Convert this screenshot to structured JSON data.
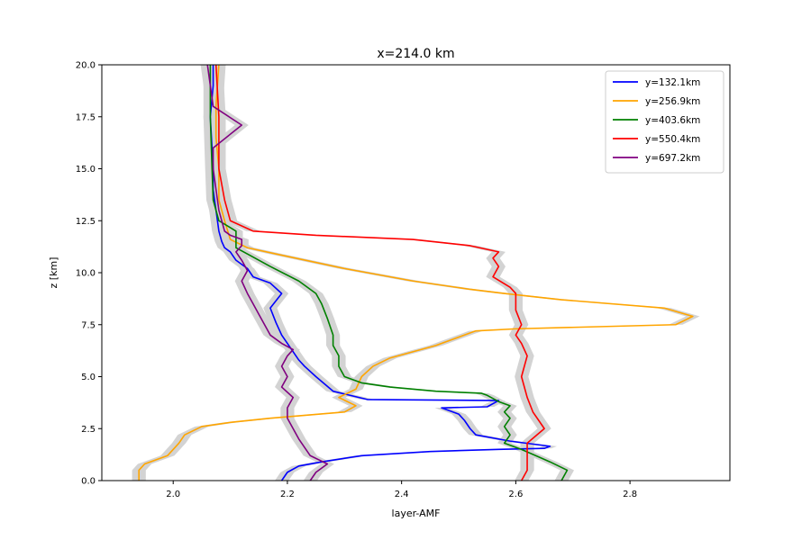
{
  "chart_data": {
    "type": "line",
    "title": "x=214.0 km",
    "xlabel": "layer-AMF",
    "ylabel": "z [km]",
    "xlim": [
      1.875,
      2.975
    ],
    "ylim": [
      0,
      20
    ],
    "xticks": [
      2.0,
      2.2,
      2.4,
      2.6,
      2.8
    ],
    "xtick_labels": [
      "2.0",
      "2.2",
      "2.4",
      "2.6",
      "2.8"
    ],
    "yticks": [
      0,
      2.5,
      5,
      7.5,
      10,
      12.5,
      15,
      17.5,
      20
    ],
    "ytick_labels": [
      "0.0",
      "2.5",
      "5.0",
      "7.5",
      "10.0",
      "12.5",
      "15.0",
      "17.5",
      "20.0"
    ],
    "grid": false,
    "legend_position": "top-right",
    "uncertainty_band": {
      "color": "#d3d3d3",
      "half_width": 0.012
    },
    "series": [
      {
        "name": "y=132.1km",
        "color": "#0000ff",
        "x": [
          2.19,
          2.2,
          2.22,
          2.26,
          2.33,
          2.45,
          2.57,
          2.65,
          2.66,
          2.59,
          2.53,
          2.52,
          2.51,
          2.5,
          2.47,
          2.55,
          2.57,
          2.34,
          2.28,
          2.25,
          2.23,
          2.22,
          2.21,
          2.19,
          2.18,
          2.17,
          2.19,
          2.17,
          2.14,
          2.13,
          2.11,
          2.1,
          2.09,
          2.085,
          2.08,
          2.075,
          2.07,
          2.07,
          2.068,
          2.065,
          2.07,
          2.07
        ],
        "y": [
          0.0,
          0.4,
          0.7,
          0.9,
          1.2,
          1.4,
          1.5,
          1.55,
          1.65,
          1.9,
          2.2,
          2.5,
          2.9,
          3.2,
          3.5,
          3.55,
          3.85,
          3.9,
          4.3,
          5.0,
          5.5,
          5.8,
          6.2,
          7.0,
          7.6,
          8.3,
          9.0,
          9.5,
          9.8,
          10.2,
          10.6,
          11.0,
          11.2,
          11.5,
          12.0,
          13.0,
          14.0,
          15.0,
          16.0,
          17.5,
          19.0,
          20.0
        ]
      },
      {
        "name": "y=256.9km",
        "color": "#ffa500",
        "x": [
          1.94,
          1.94,
          1.95,
          1.99,
          2.01,
          2.02,
          2.05,
          2.1,
          2.17,
          2.3,
          2.32,
          2.29,
          2.32,
          2.33,
          2.35,
          2.38,
          2.46,
          2.51,
          2.53,
          2.6,
          2.88,
          2.91,
          2.86,
          2.68,
          2.58,
          2.52,
          2.42,
          2.3,
          2.18,
          2.13,
          2.1,
          2.09,
          2.08,
          2.08,
          2.075,
          2.075,
          2.08
        ],
        "y": [
          0.0,
          0.5,
          0.8,
          1.2,
          1.8,
          2.2,
          2.6,
          2.8,
          3.0,
          3.3,
          3.6,
          4.0,
          4.4,
          5.0,
          5.5,
          5.9,
          6.5,
          7.0,
          7.2,
          7.3,
          7.5,
          7.9,
          8.3,
          8.7,
          9.0,
          9.2,
          9.6,
          10.2,
          10.9,
          11.2,
          11.6,
          12.5,
          13.5,
          15.0,
          16.5,
          18.0,
          20.0
        ]
      },
      {
        "name": "y=403.6km",
        "color": "#008000",
        "x": [
          2.68,
          2.69,
          2.66,
          2.61,
          2.58,
          2.59,
          2.58,
          2.59,
          2.58,
          2.59,
          2.57,
          2.55,
          2.54,
          2.46,
          2.38,
          2.33,
          2.3,
          2.29,
          2.29,
          2.28,
          2.28,
          2.27,
          2.26,
          2.25,
          2.22,
          2.17,
          2.13,
          2.11,
          2.11,
          2.11,
          2.08,
          2.07,
          2.068,
          2.065,
          2.065
        ],
        "y": [
          0.0,
          0.5,
          0.9,
          1.5,
          1.8,
          2.2,
          2.6,
          3.0,
          3.3,
          3.6,
          3.8,
          4.1,
          4.2,
          4.3,
          4.5,
          4.7,
          5.0,
          5.5,
          6.0,
          6.5,
          7.0,
          7.8,
          8.5,
          9.0,
          9.6,
          10.3,
          10.9,
          11.2,
          11.5,
          12.0,
          12.5,
          13.5,
          15.0,
          17.5,
          20.0
        ]
      },
      {
        "name": "y=550.4km",
        "color": "#ff0000",
        "x": [
          2.61,
          2.62,
          2.62,
          2.62,
          2.65,
          2.64,
          2.63,
          2.62,
          2.61,
          2.62,
          2.61,
          2.6,
          2.61,
          2.6,
          2.6,
          2.59,
          2.56,
          2.57,
          2.56,
          2.57,
          2.52,
          2.42,
          2.25,
          2.14,
          2.1,
          2.09,
          2.08,
          2.08,
          2.075
        ],
        "y": [
          0.0,
          0.5,
          1.0,
          1.8,
          2.5,
          2.9,
          3.3,
          4.0,
          5.0,
          6.0,
          6.6,
          7.0,
          7.5,
          8.2,
          9.0,
          9.3,
          9.8,
          10.3,
          10.7,
          11.0,
          11.3,
          11.6,
          11.8,
          12.0,
          12.5,
          13.5,
          15.0,
          17.5,
          20.0
        ]
      },
      {
        "name": "y=697.2km",
        "color": "#800080",
        "x": [
          2.24,
          2.25,
          2.27,
          2.24,
          2.23,
          2.22,
          2.21,
          2.2,
          2.2,
          2.21,
          2.19,
          2.2,
          2.19,
          2.2,
          2.21,
          2.19,
          2.17,
          2.16,
          2.15,
          2.14,
          2.13,
          2.12,
          2.13,
          2.12,
          2.11,
          2.12,
          2.12,
          2.1,
          2.09,
          2.08,
          2.075,
          2.07,
          2.07,
          2.12,
          2.07,
          2.065,
          2.06
        ],
        "y": [
          0.0,
          0.4,
          0.8,
          1.2,
          1.6,
          2.0,
          2.5,
          3.0,
          3.5,
          4.0,
          4.5,
          5.0,
          5.5,
          6.0,
          6.3,
          6.6,
          7.0,
          7.5,
          8.0,
          8.5,
          9.0,
          9.6,
          10.1,
          10.6,
          11.0,
          11.3,
          11.6,
          11.8,
          12.0,
          13.0,
          14.0,
          15.0,
          16.0,
          17.1,
          18.0,
          19.0,
          20.0
        ]
      }
    ]
  }
}
